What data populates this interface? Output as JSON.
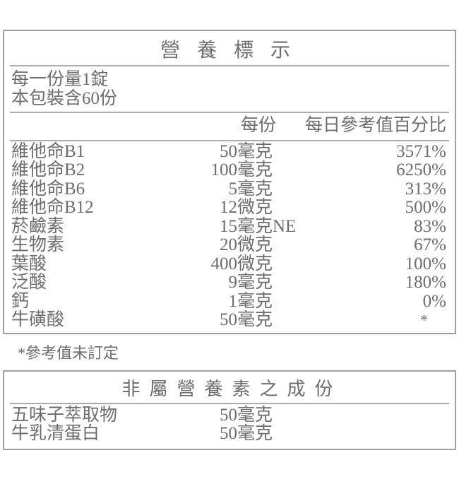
{
  "colors": {
    "background": "#ffffff",
    "text": "#6d6d6d",
    "line": "#9f9f9f"
  },
  "main_table": {
    "title": "營養標示",
    "serving_size": "每一份量1錠",
    "servings_per_container": "本包裝含60份",
    "columns": {
      "per_serving": "每份",
      "daily_value_percent": "每日參考值百分比"
    },
    "rows": [
      {
        "name": "維他命B1",
        "amount": "50",
        "unit": "毫克",
        "daily_value": "3571%"
      },
      {
        "name": "維他命B2",
        "amount": "100",
        "unit": "毫克",
        "daily_value": "6250%"
      },
      {
        "name": "維他命B6",
        "amount": "5",
        "unit": "毫克",
        "daily_value": "313%"
      },
      {
        "name": "維他命B12",
        "amount": "12",
        "unit": "微克",
        "daily_value": "500%"
      },
      {
        "name": "菸鹼素",
        "amount": "15",
        "unit": "毫克NE",
        "daily_value": "83%"
      },
      {
        "name": "生物素",
        "amount": "20",
        "unit": "微克",
        "daily_value": "67%"
      },
      {
        "name": "葉酸",
        "amount": "400",
        "unit": "微克",
        "daily_value": "100%"
      },
      {
        "name": "泛酸",
        "amount": "9",
        "unit": "毫克",
        "daily_value": "180%"
      },
      {
        "name": "鈣",
        "amount": "1",
        "unit": "毫克",
        "daily_value": "0%"
      },
      {
        "name": "牛磺酸",
        "amount": "50",
        "unit": "毫克",
        "daily_value": "*"
      }
    ]
  },
  "footnote": "*參考值未訂定",
  "secondary_table": {
    "title": "非屬營養素之成份",
    "rows": [
      {
        "name": "五味子萃取物",
        "amount": "50",
        "unit": "毫克"
      },
      {
        "name": "牛乳清蛋白",
        "amount": "50",
        "unit": "毫克"
      }
    ]
  }
}
